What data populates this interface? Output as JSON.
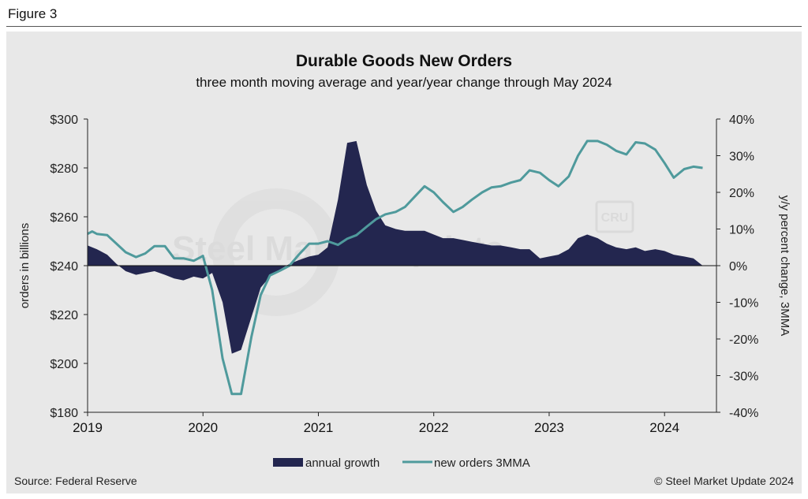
{
  "figure_label": "Figure 3",
  "source": "Source: Federal Reserve",
  "copyright": "© Steel Market Update 2024",
  "watermark": {
    "brand": "Steel Market Update",
    "badge": "CRU"
  },
  "colors": {
    "area": "#23264f",
    "line": "#4f9a9c",
    "panel": "#e8e8e8"
  },
  "chart_data": {
    "type": "area+line",
    "title": "Durable Goods New Orders",
    "subtitle": "three month moving average and year/year change through May 2024",
    "ylabel_left": "orders in billions",
    "ylabel_right": "y/y percent change, 3MMA",
    "ylim_left": [
      180,
      300
    ],
    "ylim_right": [
      -40,
      40
    ],
    "left_ticks": [
      "$300",
      "$280",
      "$260",
      "$240",
      "$220",
      "$200",
      "$180"
    ],
    "right_ticks": [
      "40%",
      "30%",
      "20%",
      "10%",
      "0%",
      "-10%",
      "-20%",
      "-30%",
      "-40%"
    ],
    "x_ticks": [
      "2019",
      "2020",
      "2021",
      "2022",
      "2023",
      "2024"
    ],
    "x_range": [
      2019.0,
      2024.45
    ],
    "legend": [
      "annual growth",
      "new orders 3MMA"
    ],
    "series": [
      {
        "name": "annual growth",
        "axis": "right",
        "kind": "area",
        "x": [
          2019.0,
          2019.08,
          2019.17,
          2019.25,
          2019.33,
          2019.42,
          2019.5,
          2019.58,
          2019.67,
          2019.75,
          2019.83,
          2019.92,
          2020.0,
          2020.08,
          2020.17,
          2020.25,
          2020.33,
          2020.42,
          2020.5,
          2020.58,
          2020.67,
          2020.75,
          2020.83,
          2020.92,
          2021.0,
          2021.08,
          2021.17,
          2021.25,
          2021.33,
          2021.42,
          2021.5,
          2021.58,
          2021.67,
          2021.75,
          2021.83,
          2021.92,
          2022.0,
          2022.08,
          2022.17,
          2022.25,
          2022.33,
          2022.42,
          2022.5,
          2022.58,
          2022.67,
          2022.75,
          2022.83,
          2022.92,
          2023.0,
          2023.08,
          2023.17,
          2023.25,
          2023.33,
          2023.42,
          2023.5,
          2023.58,
          2023.67,
          2023.75,
          2023.83,
          2023.92,
          2024.0,
          2024.08,
          2024.17,
          2024.25,
          2024.33
        ],
        "values": [
          5.5,
          4.5,
          3.0,
          0.5,
          -1.5,
          -2.5,
          -2.0,
          -1.5,
          -2.5,
          -3.5,
          -4.0,
          -3.0,
          -3.5,
          -2.0,
          -10.0,
          -24.0,
          -23.0,
          -14.0,
          -6.0,
          -3.0,
          -1.0,
          0.5,
          1.5,
          2.5,
          3.0,
          5.0,
          18.0,
          33.5,
          34.0,
          22.0,
          15.0,
          11.0,
          10.0,
          9.5,
          9.5,
          9.5,
          8.5,
          7.5,
          7.5,
          7.0,
          6.5,
          6.0,
          5.5,
          5.5,
          5.0,
          4.5,
          4.5,
          2.0,
          2.5,
          3.0,
          4.5,
          7.5,
          8.5,
          7.5,
          6.0,
          5.0,
          4.5,
          5.0,
          4.0,
          4.5,
          4.0,
          3.0,
          2.5,
          2.0,
          0.0
        ]
      },
      {
        "name": "new orders 3MMA",
        "axis": "left",
        "kind": "line",
        "x": [
          2019.0,
          2019.04,
          2019.08,
          2019.17,
          2019.25,
          2019.33,
          2019.42,
          2019.5,
          2019.58,
          2019.67,
          2019.75,
          2019.83,
          2019.92,
          2020.0,
          2020.08,
          2020.17,
          2020.25,
          2020.33,
          2020.42,
          2020.5,
          2020.58,
          2020.67,
          2020.75,
          2020.83,
          2020.92,
          2021.0,
          2021.08,
          2021.17,
          2021.25,
          2021.33,
          2021.42,
          2021.5,
          2021.58,
          2021.67,
          2021.75,
          2021.83,
          2021.92,
          2022.0,
          2022.08,
          2022.17,
          2022.25,
          2022.33,
          2022.42,
          2022.5,
          2022.58,
          2022.67,
          2022.75,
          2022.83,
          2022.92,
          2023.0,
          2023.08,
          2023.17,
          2023.25,
          2023.33,
          2023.42,
          2023.5,
          2023.58,
          2023.67,
          2023.75,
          2023.83,
          2023.92,
          2024.0,
          2024.08,
          2024.17,
          2024.25,
          2024.33
        ],
        "values": [
          253.0,
          254.0,
          253.0,
          252.5,
          249.0,
          245.5,
          243.5,
          245.0,
          248.0,
          248.0,
          243.0,
          243.0,
          242.0,
          244.0,
          230.0,
          202.0,
          187.5,
          187.5,
          211.0,
          228.0,
          236.0,
          238.0,
          240.0,
          244.5,
          249.0,
          249.0,
          250.0,
          248.5,
          251.0,
          252.5,
          256.0,
          259.0,
          261.0,
          262.0,
          264.0,
          268.0,
          272.5,
          270.0,
          266.0,
          262.0,
          264.0,
          267.0,
          270.0,
          272.0,
          272.5,
          274.0,
          275.0,
          279.0,
          278.0,
          275.0,
          272.5,
          276.5,
          285.0,
          291.0,
          291.0,
          289.5,
          287.0,
          285.5,
          290.5,
          290.0,
          287.5,
          282.0,
          276.0,
          279.5,
          280.5,
          280.0
        ]
      }
    ]
  }
}
